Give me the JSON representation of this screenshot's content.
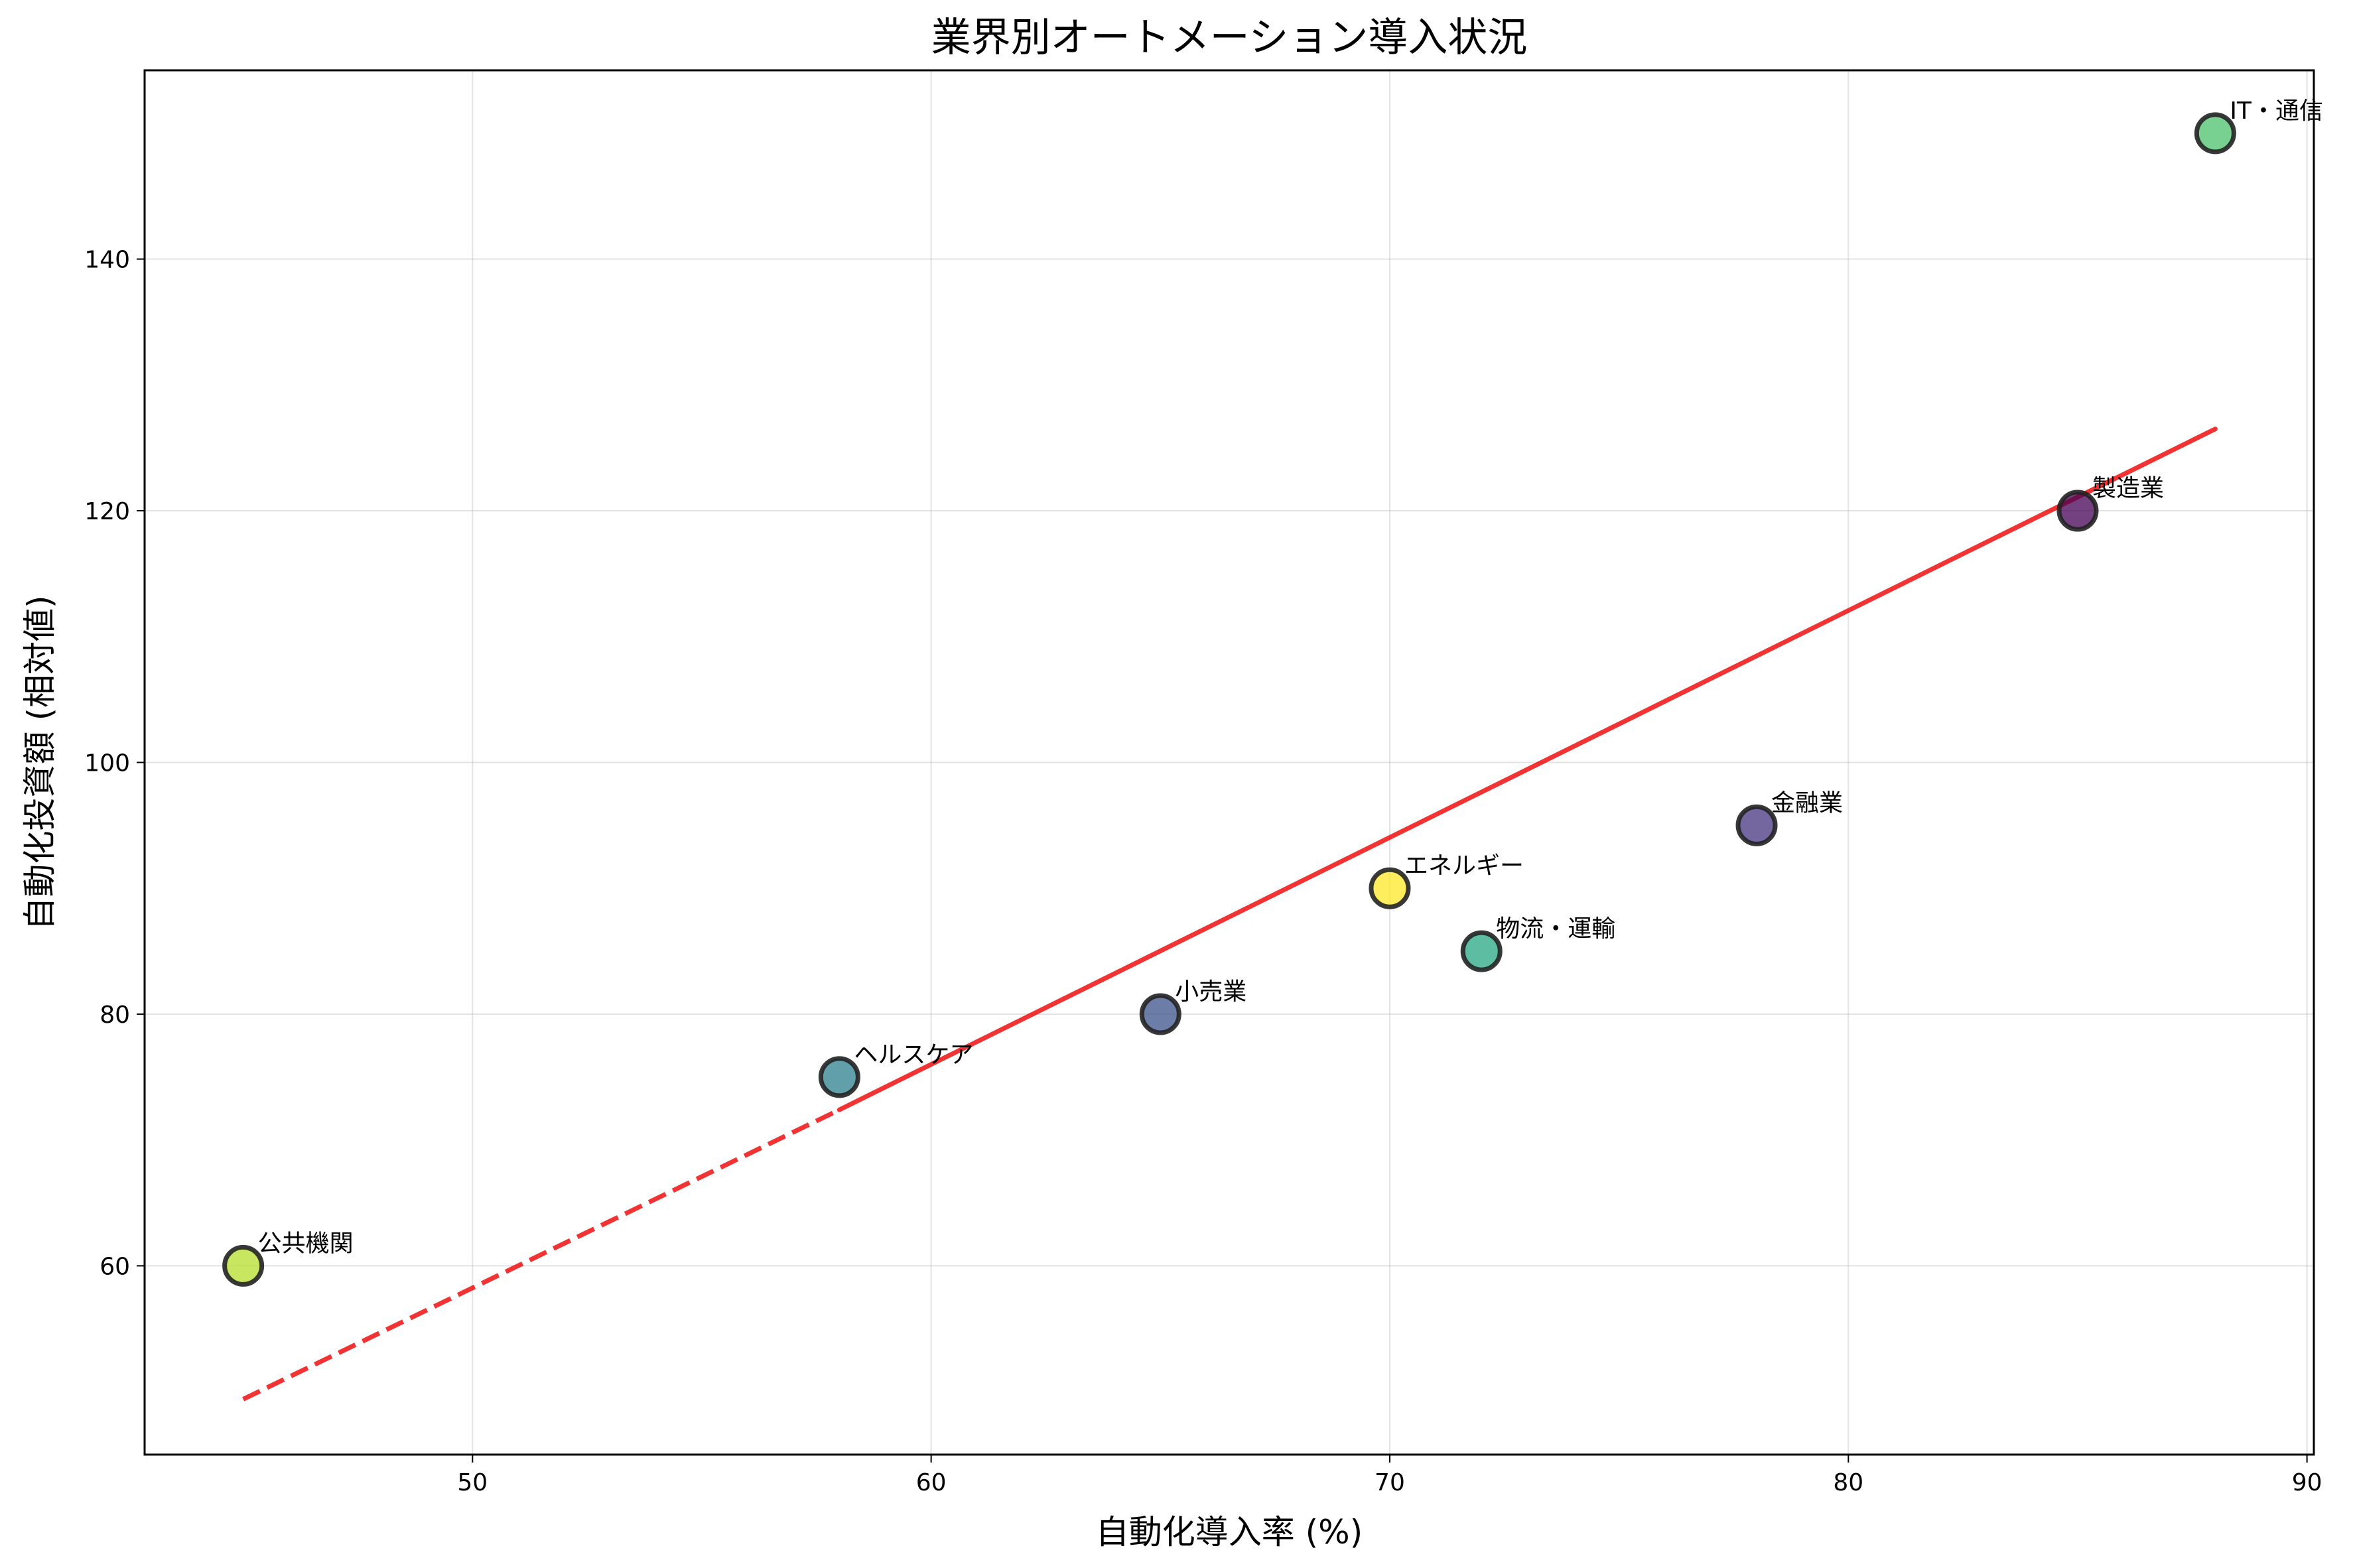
{
  "chart_data": {
    "type": "scatter",
    "title": "業界別オートメーション導入状況",
    "xlabel": "自動化導入率 (%)",
    "ylabel": "自動化投資額 (相対値)",
    "xlim": [
      42.85,
      90.15
    ],
    "ylim": [
      45.0,
      155.0
    ],
    "xticks": [
      50,
      60,
      70,
      80,
      90
    ],
    "yticks": [
      60,
      80,
      100,
      120,
      140
    ],
    "grid": true,
    "points": [
      {
        "label": "公共機関",
        "x": 45,
        "y": 60,
        "color": "#b5de2b"
      },
      {
        "label": "ヘルスケア",
        "x": 58,
        "y": 75,
        "color": "#2c7f8e"
      },
      {
        "label": "小売業",
        "x": 65,
        "y": 80,
        "color": "#3b528b"
      },
      {
        "label": "エネルギー",
        "x": 70,
        "y": 90,
        "color": "#fde725"
      },
      {
        "label": "物流・運輸",
        "x": 72,
        "y": 85,
        "color": "#26a784"
      },
      {
        "label": "金融業",
        "x": 78,
        "y": 95,
        "color": "#463480"
      },
      {
        "label": "製造業",
        "x": 85,
        "y": 120,
        "color": "#440154"
      },
      {
        "label": "IT・通信",
        "x": 88,
        "y": 150,
        "color": "#4cc26c"
      }
    ],
    "trend_line": {
      "color": "#ee0000",
      "dashed_segment": {
        "x": [
          45,
          58
        ],
        "y": [
          49.4,
          72.4
        ]
      },
      "solid_segment": {
        "x": [
          58,
          88
        ],
        "y": [
          72.4,
          126.5
        ]
      }
    }
  }
}
